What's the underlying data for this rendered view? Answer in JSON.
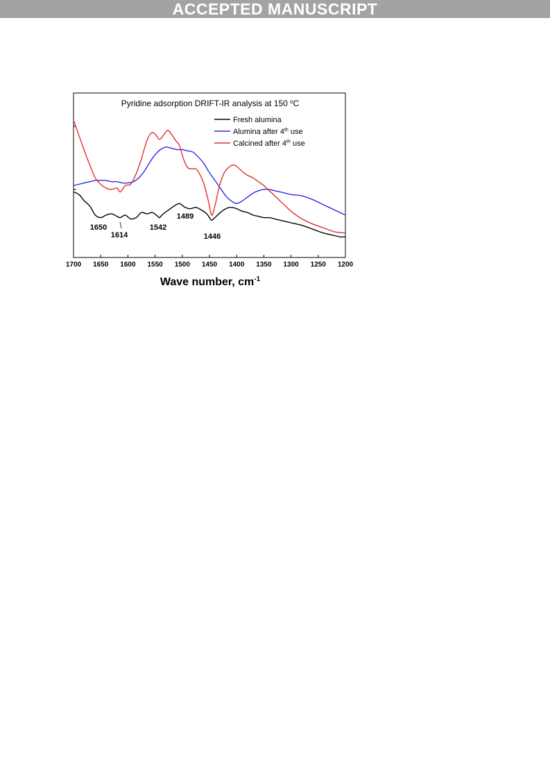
{
  "banner": {
    "text": "ACCEPTED MANUSCRIPT"
  },
  "chart_data": {
    "type": "line",
    "title": "Pyridine adsorption DRIFT-IR analysis at 150 °C",
    "xlabel": "Wave number, cm-1",
    "ylabel": "",
    "x_reversed": true,
    "xlim": [
      1700,
      1200
    ],
    "ylim": [
      0,
      100
    ],
    "x_ticks": [
      1700,
      1650,
      1600,
      1550,
      1500,
      1450,
      1400,
      1350,
      1300,
      1250,
      1200
    ],
    "x_tick_labels": [
      "1700",
      "1650",
      "1600",
      "1550",
      "1500",
      "1450",
      "1400",
      "1350",
      "1300",
      "1250",
      "1200"
    ],
    "grid": false,
    "legend_position": "top-right",
    "series": [
      {
        "name": "Fresh alumina",
        "color": "#000000",
        "points": [
          [
            1700,
            44
          ],
          [
            1690,
            42
          ],
          [
            1680,
            37
          ],
          [
            1670,
            33
          ],
          [
            1660,
            26
          ],
          [
            1650,
            24
          ],
          [
            1640,
            26
          ],
          [
            1630,
            27
          ],
          [
            1620,
            25
          ],
          [
            1614,
            24
          ],
          [
            1605,
            26
          ],
          [
            1595,
            23
          ],
          [
            1585,
            24
          ],
          [
            1575,
            28
          ],
          [
            1565,
            27
          ],
          [
            1555,
            28
          ],
          [
            1545,
            25
          ],
          [
            1542,
            24
          ],
          [
            1535,
            27
          ],
          [
            1525,
            30
          ],
          [
            1515,
            33
          ],
          [
            1505,
            35
          ],
          [
            1495,
            32
          ],
          [
            1485,
            31
          ],
          [
            1475,
            32
          ],
          [
            1465,
            30
          ],
          [
            1455,
            27
          ],
          [
            1450,
            24
          ],
          [
            1446,
            22
          ],
          [
            1440,
            24
          ],
          [
            1430,
            28
          ],
          [
            1420,
            31
          ],
          [
            1410,
            32
          ],
          [
            1400,
            31
          ],
          [
            1390,
            29
          ],
          [
            1380,
            28
          ],
          [
            1370,
            26
          ],
          [
            1360,
            25
          ],
          [
            1350,
            24
          ],
          [
            1340,
            24
          ],
          [
            1330,
            23
          ],
          [
            1320,
            22
          ],
          [
            1310,
            21
          ],
          [
            1300,
            20
          ],
          [
            1280,
            18
          ],
          [
            1260,
            15
          ],
          [
            1240,
            12
          ],
          [
            1220,
            10
          ],
          [
            1210,
            9
          ],
          [
            1200,
            9
          ]
        ]
      },
      {
        "name": "Alumina after 4th use",
        "color": "#2c2ce6",
        "points": [
          [
            1700,
            49
          ],
          [
            1690,
            50
          ],
          [
            1680,
            51
          ],
          [
            1670,
            52
          ],
          [
            1660,
            53
          ],
          [
            1650,
            53
          ],
          [
            1640,
            53
          ],
          [
            1630,
            52
          ],
          [
            1620,
            52
          ],
          [
            1610,
            51
          ],
          [
            1600,
            51
          ],
          [
            1590,
            52
          ],
          [
            1580,
            55
          ],
          [
            1570,
            60
          ],
          [
            1560,
            67
          ],
          [
            1550,
            73
          ],
          [
            1540,
            77
          ],
          [
            1530,
            79
          ],
          [
            1520,
            78
          ],
          [
            1510,
            77
          ],
          [
            1500,
            77
          ],
          [
            1490,
            76
          ],
          [
            1480,
            75
          ],
          [
            1470,
            71
          ],
          [
            1460,
            66
          ],
          [
            1450,
            59
          ],
          [
            1440,
            53
          ],
          [
            1430,
            47
          ],
          [
            1420,
            41
          ],
          [
            1410,
            37
          ],
          [
            1400,
            35
          ],
          [
            1390,
            37
          ],
          [
            1380,
            40
          ],
          [
            1370,
            43
          ],
          [
            1360,
            45
          ],
          [
            1350,
            46
          ],
          [
            1340,
            46
          ],
          [
            1330,
            45
          ],
          [
            1320,
            44
          ],
          [
            1310,
            43
          ],
          [
            1300,
            42
          ],
          [
            1280,
            41
          ],
          [
            1260,
            38
          ],
          [
            1240,
            34
          ],
          [
            1220,
            30
          ],
          [
            1200,
            26
          ]
        ]
      },
      {
        "name": "Calcined after 4th use",
        "color": "#e03030",
        "points": [
          [
            1700,
            100
          ],
          [
            1690,
            88
          ],
          [
            1680,
            76
          ],
          [
            1670,
            65
          ],
          [
            1660,
            55
          ],
          [
            1650,
            50
          ],
          [
            1640,
            47
          ],
          [
            1630,
            46
          ],
          [
            1620,
            47
          ],
          [
            1614,
            44
          ],
          [
            1605,
            49
          ],
          [
            1595,
            50
          ],
          [
            1585,
            58
          ],
          [
            1575,
            70
          ],
          [
            1565,
            84
          ],
          [
            1557,
            90
          ],
          [
            1550,
            89
          ],
          [
            1542,
            85
          ],
          [
            1535,
            88
          ],
          [
            1527,
            92
          ],
          [
            1520,
            89
          ],
          [
            1512,
            84
          ],
          [
            1505,
            80
          ],
          [
            1498,
            70
          ],
          [
            1490,
            63
          ],
          [
            1482,
            62
          ],
          [
            1475,
            62
          ],
          [
            1468,
            58
          ],
          [
            1460,
            50
          ],
          [
            1452,
            37
          ],
          [
            1446,
            26
          ],
          [
            1440,
            33
          ],
          [
            1432,
            48
          ],
          [
            1424,
            58
          ],
          [
            1415,
            63
          ],
          [
            1407,
            65
          ],
          [
            1400,
            64
          ],
          [
            1390,
            60
          ],
          [
            1380,
            57
          ],
          [
            1370,
            55
          ],
          [
            1360,
            52
          ],
          [
            1350,
            49
          ],
          [
            1340,
            45
          ],
          [
            1330,
            41
          ],
          [
            1320,
            37
          ],
          [
            1310,
            33
          ],
          [
            1300,
            29
          ],
          [
            1280,
            23
          ],
          [
            1260,
            19
          ],
          [
            1240,
            16
          ],
          [
            1220,
            13
          ],
          [
            1200,
            12
          ]
        ]
      }
    ],
    "annotations": [
      {
        "text": "1650",
        "x": 1650
      },
      {
        "text": "1614",
        "x": 1614
      },
      {
        "text": "1542",
        "x": 1542
      },
      {
        "text": "1489",
        "x": 1489
      },
      {
        "text": "1446",
        "x": 1446
      }
    ]
  }
}
